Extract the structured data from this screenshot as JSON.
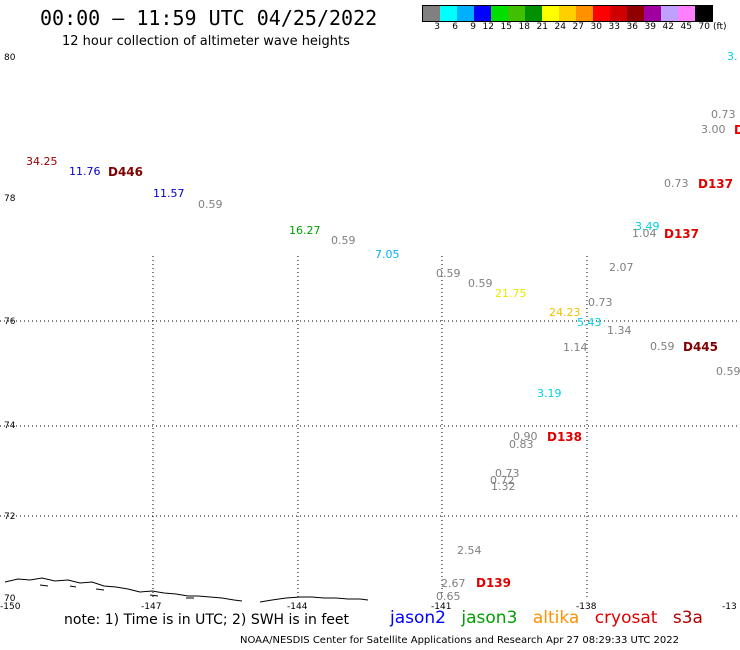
{
  "title": "00:00 – 11:59 UTC 04/25/2022",
  "subtitle": "12 hour collection of altimeter wave heights",
  "legend": {
    "labels": [
      "3",
      "6",
      "9",
      "12",
      "15",
      "18",
      "21",
      "24",
      "27",
      "30",
      "33",
      "36",
      "39",
      "42",
      "45",
      "70"
    ],
    "unit": "(ft)",
    "colors": [
      "#808080",
      "#00ffff",
      "#00b0ff",
      "#0000ff",
      "#00e000",
      "#40c000",
      "#009000",
      "#ffff00",
      "#ffd000",
      "#ff9000",
      "#ff0000",
      "#d00000",
      "#900000",
      "#a000a0",
      "#c0a0ff",
      "#ff80ff",
      "#000000"
    ]
  },
  "axes": {
    "lat_labels": [
      "80",
      "78",
      "76",
      "74",
      "72",
      "70"
    ],
    "lon_labels": [
      "-150",
      "-147",
      "-144",
      "-141",
      "-138",
      "-13"
    ]
  },
  "values": [
    {
      "t": "34.25",
      "c": "#a00000"
    },
    {
      "t": "11.76",
      "c": "#0000cc"
    },
    {
      "t": "11.57",
      "c": "#0000cc"
    },
    {
      "t": "0.59",
      "c": "#808080"
    },
    {
      "t": "16.27",
      "c": "#00a000"
    },
    {
      "t": "0.59",
      "c": "#808080"
    },
    {
      "t": "7.05",
      "c": "#00b0ff"
    },
    {
      "t": "0.59",
      "c": "#808080"
    },
    {
      "t": "0.59",
      "c": "#808080"
    },
    {
      "t": "21.75",
      "c": "#e8e800"
    },
    {
      "t": "24.23",
      "c": "#f0c000"
    },
    {
      "t": "5.43",
      "c": "#00d0e0"
    },
    {
      "t": "0.73",
      "c": "#808080"
    },
    {
      "t": "1.14",
      "c": "#808080"
    },
    {
      "t": "1.34",
      "c": "#808080"
    },
    {
      "t": "3.19",
      "c": "#00d0e0"
    },
    {
      "t": "0.90",
      "c": "#808080"
    },
    {
      "t": "0.83",
      "c": "#808080"
    },
    {
      "t": "0.73",
      "c": "#808080"
    },
    {
      "t": "0.72",
      "c": "#808080"
    },
    {
      "t": "1.32",
      "c": "#808080"
    },
    {
      "t": "2.54",
      "c": "#808080"
    },
    {
      "t": "2.67",
      "c": "#808080"
    },
    {
      "t": "0.65",
      "c": "#808080"
    },
    {
      "t": "3.49",
      "c": "#00d0e0"
    },
    {
      "t": "1.04",
      "c": "#808080"
    },
    {
      "t": "2.07",
      "c": "#808080"
    },
    {
      "t": "0.73",
      "c": "#808080"
    },
    {
      "t": "0.59",
      "c": "#808080"
    },
    {
      "t": "0.59",
      "c": "#808080"
    },
    {
      "t": "0.73",
      "c": "#808080"
    },
    {
      "t": "3.00",
      "c": "#808080"
    },
    {
      "t": "3.",
      "c": "#00d0e0"
    }
  ],
  "passes": [
    {
      "t": "D446",
      "c": "#800000"
    },
    {
      "t": "D137",
      "c": "#e00000"
    },
    {
      "t": "D137",
      "c": "#e00000"
    },
    {
      "t": "D445",
      "c": "#800000"
    },
    {
      "t": "D138",
      "c": "#e00000"
    },
    {
      "t": "D139",
      "c": "#e00000"
    },
    {
      "t": "D",
      "c": "#e00000"
    }
  ],
  "note": "note: 1) Time is in UTC; 2) SWH is in feet",
  "satellites": [
    {
      "name": "jason2",
      "color": "#0000ff"
    },
    {
      "name": "jason3",
      "color": "#00a000"
    },
    {
      "name": "altika",
      "color": "#ff9000"
    },
    {
      "name": "cryosat",
      "color": "#e00000"
    },
    {
      "name": "s3a",
      "color": "#b00000"
    }
  ],
  "footer": "NOAA/NESDIS Center for Satellite Applications and Research   Apr 27 08:29:33 UTC 2022"
}
